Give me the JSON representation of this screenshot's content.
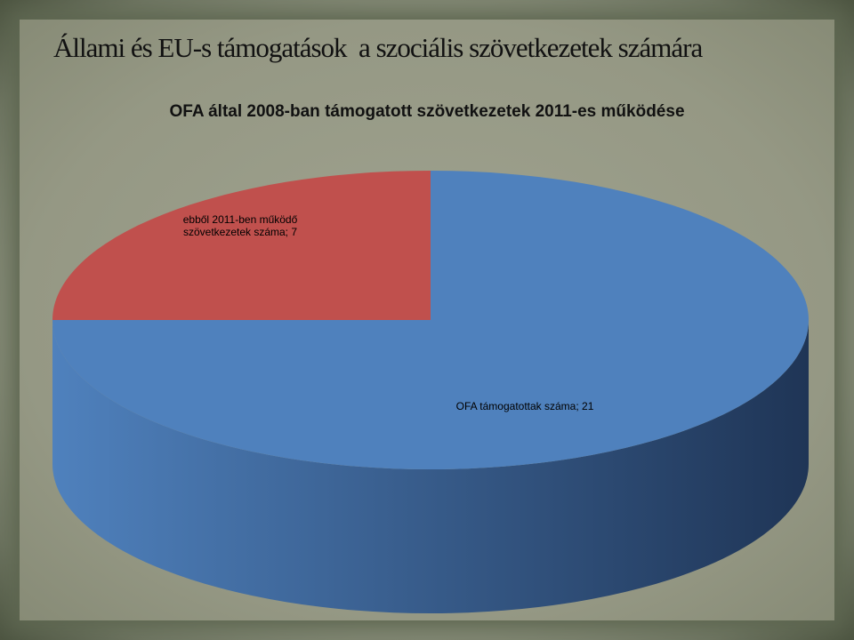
{
  "slide_title": "Állami és EU-s támogatások  a szociális szövetkezetek számára",
  "chart_data": {
    "type": "pie3d",
    "title": "OFA által 2008-ban támogatott szövetkezetek 2011-es működése",
    "values": [
      7,
      21
    ],
    "value_labels": [
      "ebből 2011-ben működő szövetkezetek száma; 7",
      "OFA támogatottak száma; 21"
    ],
    "colors": [
      "#c0504d",
      "#4f81bd"
    ],
    "side_colors": [
      "#8c3836",
      "#1f3556"
    ]
  }
}
